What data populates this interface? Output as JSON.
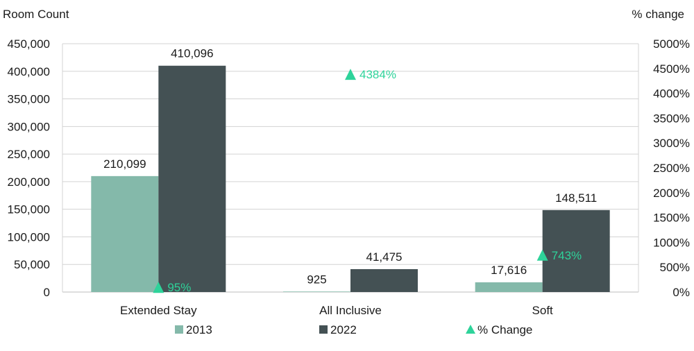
{
  "chart_data": {
    "type": "bar",
    "ylabel": "Room Count",
    "y2label": "% change",
    "categories": [
      "Extended Stay",
      "All Inclusive",
      "Soft"
    ],
    "ylim": [
      0,
      450000
    ],
    "yticks": [
      0,
      50000,
      100000,
      150000,
      200000,
      250000,
      300000,
      350000,
      400000,
      450000
    ],
    "ytick_labels": [
      "0",
      "50,000",
      "100,000",
      "150,000",
      "200,000",
      "250,000",
      "300,000",
      "350,000",
      "400,000",
      "450,000"
    ],
    "y2lim": [
      0,
      5000
    ],
    "y2ticks": [
      0,
      500,
      1000,
      1500,
      2000,
      2500,
      3000,
      3500,
      4000,
      4500,
      5000
    ],
    "y2tick_labels": [
      "0%",
      "500%",
      "1000%",
      "1500%",
      "2000%",
      "2500%",
      "3000%",
      "3500%",
      "4000%",
      "4500%",
      "5000%"
    ],
    "series": [
      {
        "name": "2013",
        "color": "#84b9aa",
        "values": [
          210099,
          925,
          17616
        ],
        "labels": [
          "210,099",
          "925",
          "17,616"
        ]
      },
      {
        "name": "2022",
        "color": "#445154",
        "values": [
          410096,
          41475,
          148511
        ],
        "labels": [
          "410,096",
          "41,475",
          "148,511"
        ]
      }
    ],
    "markers": {
      "name": "% Change",
      "color": "#2ed39a",
      "axis": "secondary",
      "values": [
        95,
        4384,
        743
      ],
      "labels": [
        "95%",
        "4384%",
        "743%"
      ]
    },
    "grid": true,
    "legend": "bottom"
  }
}
